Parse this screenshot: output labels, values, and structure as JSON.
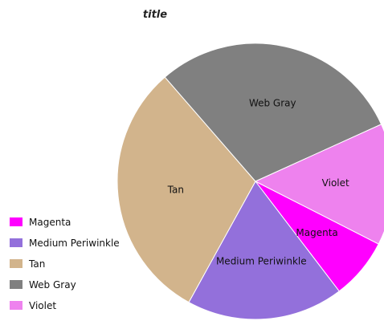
{
  "chart_data": {
    "type": "pie",
    "title": "title",
    "categories": [
      "Magenta",
      "Medium Periwinkle",
      "Tan",
      "Web Gray",
      "Violet"
    ],
    "values": [
      7,
      18,
      30,
      29,
      14
    ],
    "colors": [
      "#ff00ff",
      "#9370db",
      "#d2b48c",
      "#808080",
      "#ee82ee"
    ],
    "legend": {
      "position": "left-bottom",
      "entries": [
        "Magenta",
        "Medium Periwinkle",
        "Tan",
        "Web Gray",
        "Violet"
      ]
    }
  }
}
